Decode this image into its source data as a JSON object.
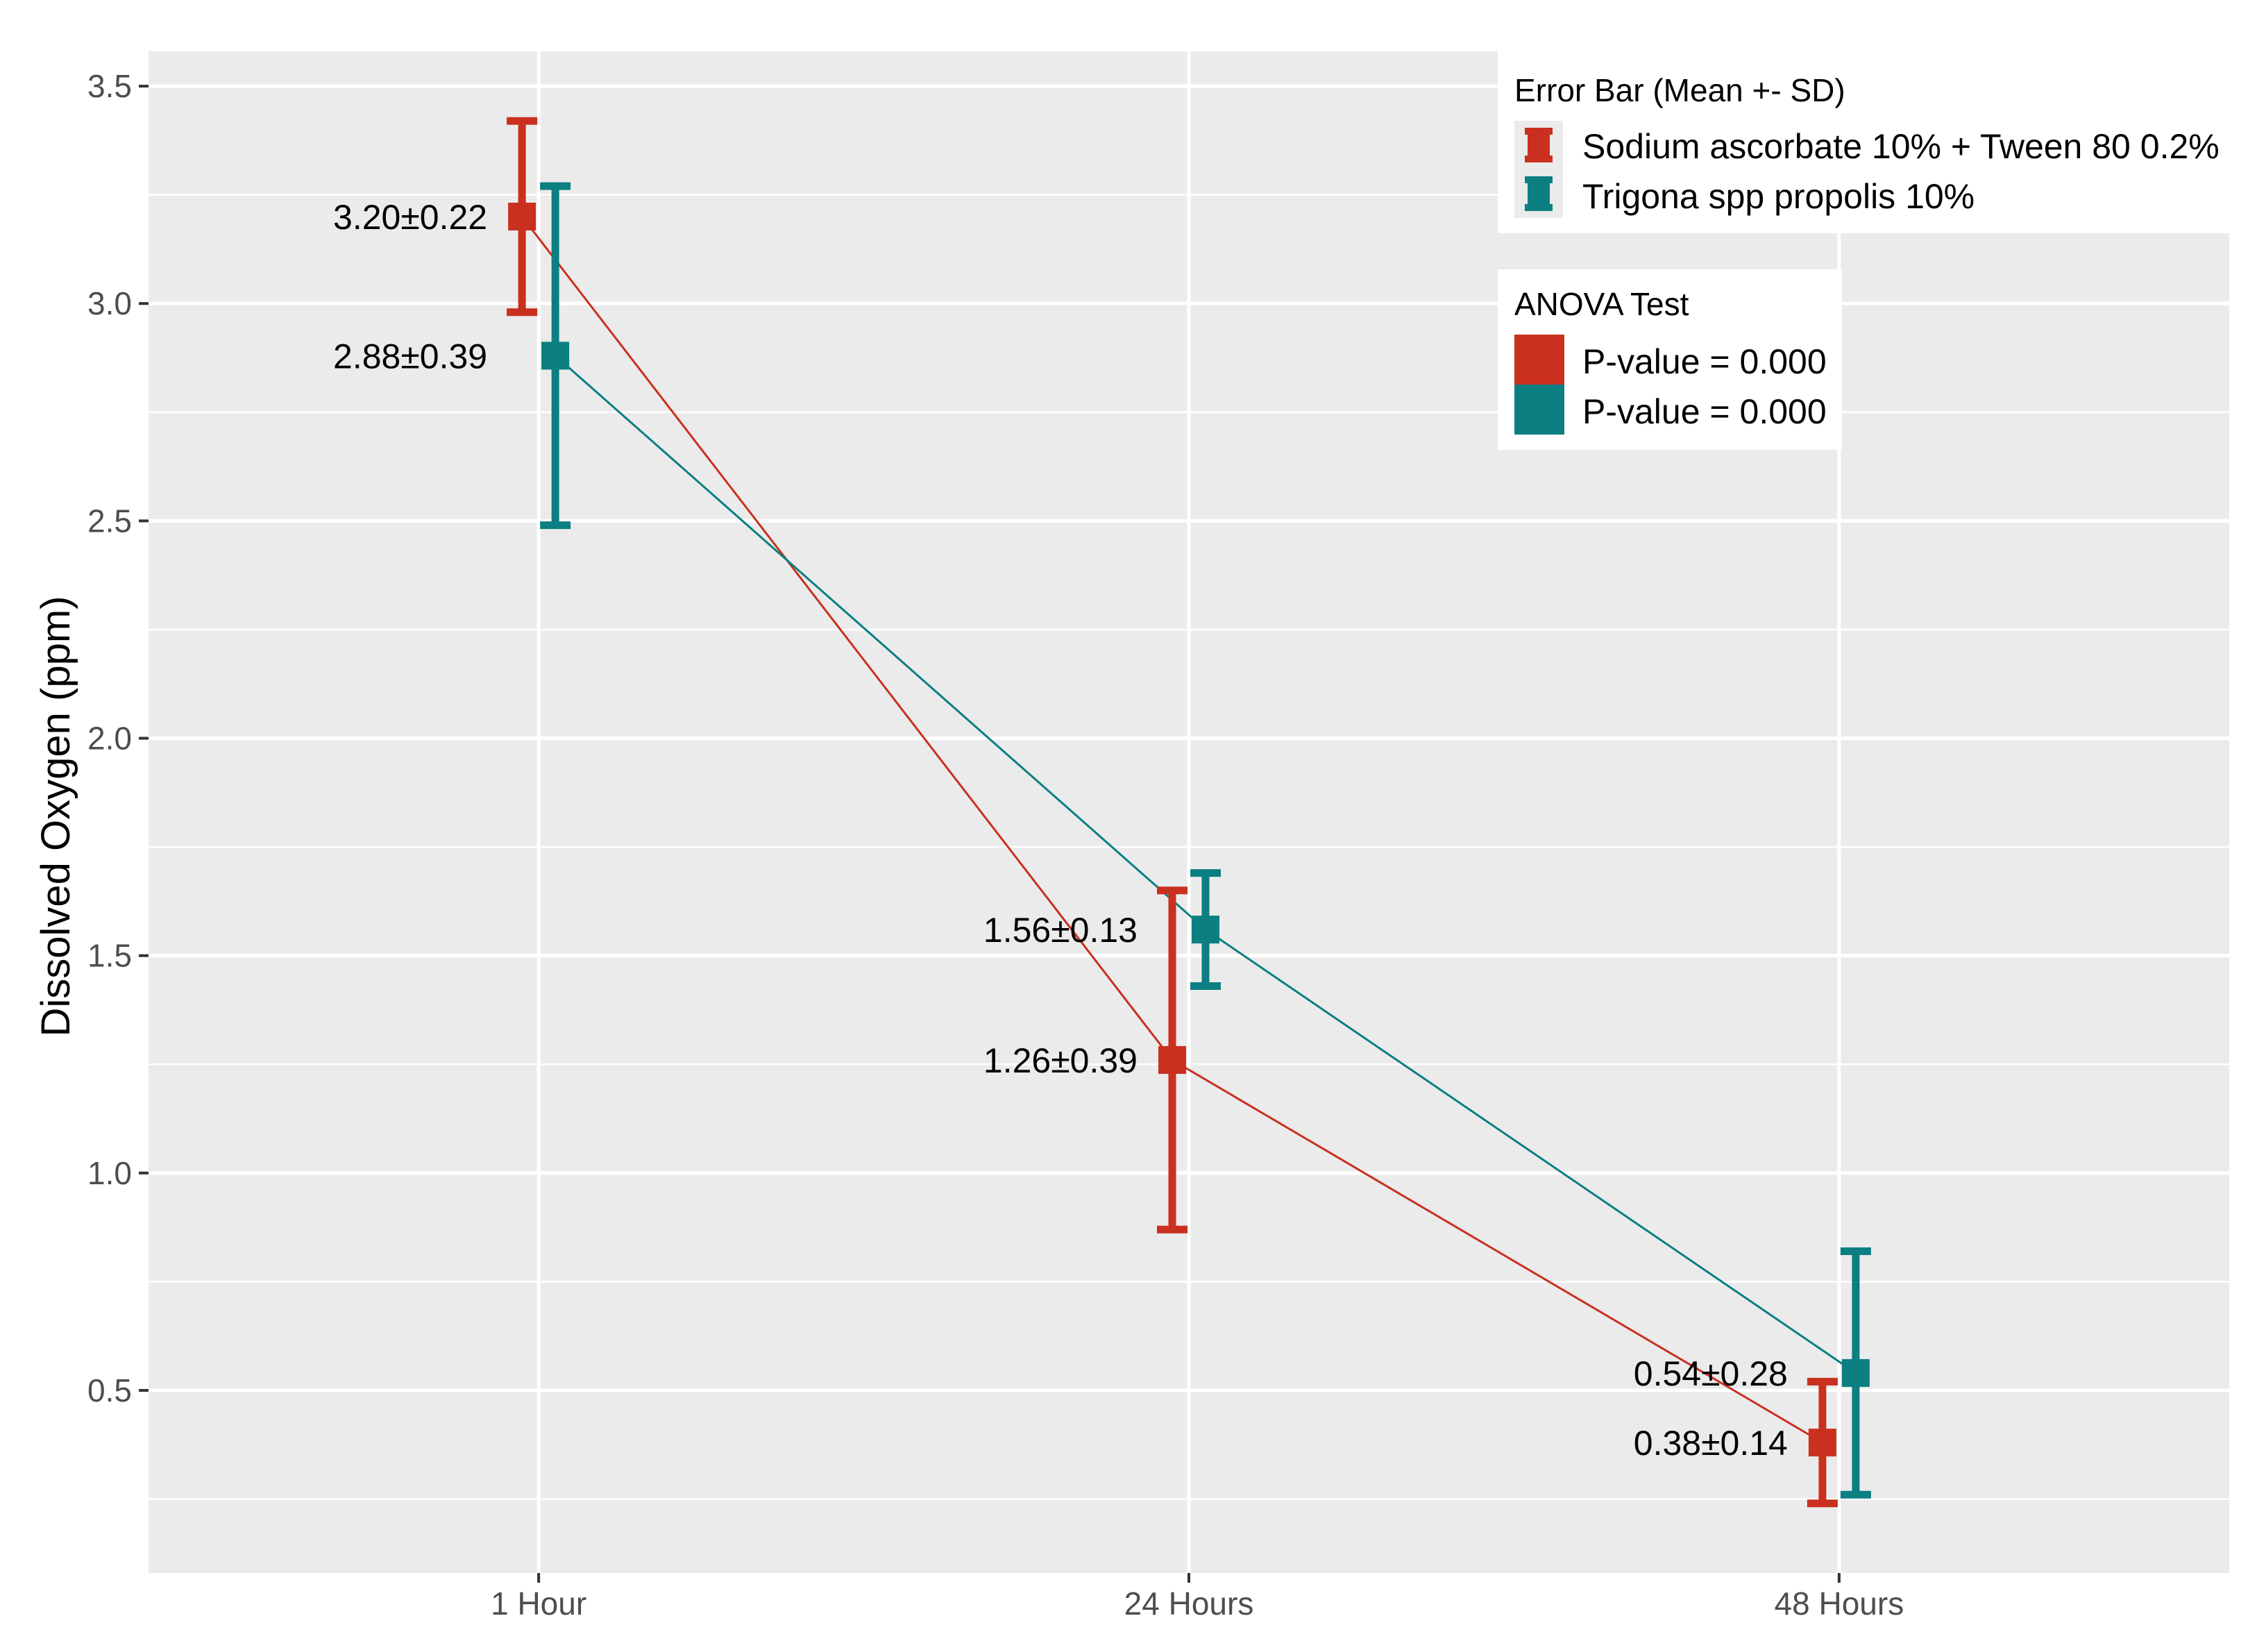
{
  "chart_data": {
    "type": "line",
    "title": "",
    "xlabel": "",
    "ylabel": "Dissolved Oxygen (ppm)",
    "categories": [
      "1 Hour",
      "24 Hours",
      "48 Hours"
    ],
    "ylim": [
      0.08,
      3.58
    ],
    "yticks": [
      0.5,
      1.0,
      1.5,
      2.0,
      2.5,
      3.0,
      3.5
    ],
    "ytick_labels": [
      "0.5",
      "1.0",
      "1.5",
      "2.0",
      "2.5",
      "3.0",
      "3.5"
    ],
    "grid": true,
    "series": [
      {
        "name": "Sodium ascorbate 10% + Tween 80 0.2%",
        "color": "#c9301f",
        "mean": [
          3.2,
          1.26,
          0.38
        ],
        "sd": [
          0.22,
          0.39,
          0.14
        ],
        "labels": [
          "3.20±0.22",
          "1.26±0.39",
          "0.38±0.14"
        ]
      },
      {
        "name": "Trigona spp propolis 10%",
        "color": "#0b7f82",
        "mean": [
          2.88,
          1.56,
          0.54
        ],
        "sd": [
          0.39,
          0.13,
          0.28
        ],
        "labels": [
          "2.88±0.39",
          "1.56±0.13",
          "0.54±0.28"
        ]
      }
    ],
    "legend_errorbar": {
      "title": "Error Bar (Mean +- SD)",
      "position": "top-right",
      "entries": [
        "Sodium ascorbate 10% + Tween 80 0.2%",
        "Trigona spp propolis 10%"
      ]
    },
    "legend_anova": {
      "title": "ANOVA Test",
      "position": "top-right",
      "entries": [
        "P-value = 0.000",
        "P-value = 0.000"
      ]
    }
  }
}
